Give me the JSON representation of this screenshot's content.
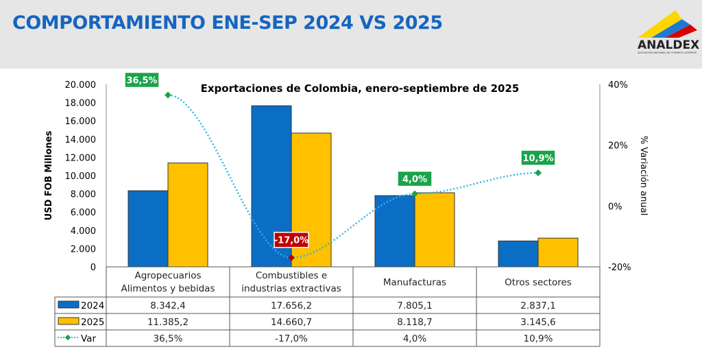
{
  "header": {
    "title": "COMPORTAMIENTO ENE-SEP 2024 VS 2025",
    "logo_name": "ANALDEX",
    "logo_subtitle": "ASOCIACIÓN NACIONAL DE COMERCIO EXTERIOR"
  },
  "chart_data": {
    "type": "bar",
    "title": "Exportaciones de Colombia, enero-septiembre de 2025",
    "ylabel": "USD FOB Millones",
    "y2label": "% Variación anual",
    "ylim": [
      0,
      20000
    ],
    "y2lim": [
      -20,
      40
    ],
    "yticks": [
      "0",
      "2.000",
      "4.000",
      "6.000",
      "8.000",
      "10.000",
      "12.000",
      "14.000",
      "16.000",
      "18.000",
      "20.000"
    ],
    "y2ticks": [
      "-20%",
      "0%",
      "20%",
      "40%"
    ],
    "categories": [
      [
        "Agropecuarios",
        "Alimentos y bebidas"
      ],
      [
        "Combustibles e",
        "industrias extractivas"
      ],
      [
        "Manufacturas"
      ],
      [
        "Otros sectores"
      ]
    ],
    "series": [
      {
        "name": "2024",
        "type": "bar",
        "color": "#0b6ec5",
        "values": [
          8342.4,
          17656.2,
          7805.1,
          2837.1
        ],
        "labels": [
          "8.342,4",
          "17.656,2",
          "7.805,1",
          "2.837,1"
        ]
      },
      {
        "name": "2025",
        "type": "bar",
        "color": "#ffc000",
        "values": [
          11385.2,
          14660.7,
          8118.7,
          3145.6
        ],
        "labels": [
          "11.385,2",
          "14.660,7",
          "8.118,7",
          "3.145,6"
        ]
      },
      {
        "name": "Var",
        "type": "line",
        "axis": "right",
        "color": "#29b6e8",
        "values": [
          36.5,
          -17.0,
          4.0,
          10.9
        ],
        "labels": [
          "36,5%",
          "-17,0%",
          "4,0%",
          "10,9%"
        ],
        "label_colors": [
          "#1aa34a",
          "#c00000",
          "#1aa34a",
          "#1aa34a"
        ]
      }
    ],
    "data_table": true
  }
}
